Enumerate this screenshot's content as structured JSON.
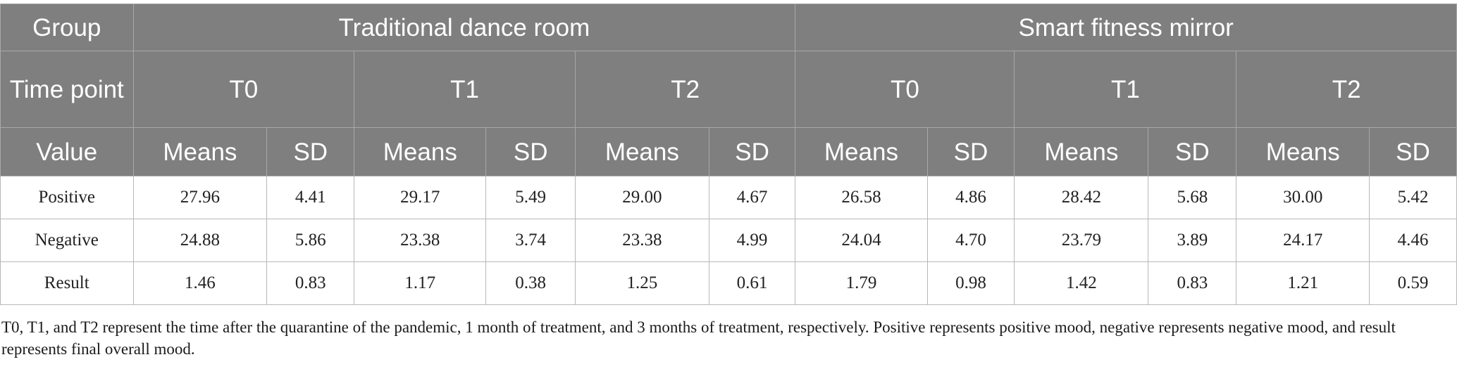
{
  "table": {
    "stub_group": "Group",
    "stub_time": "Time point",
    "stub_value": "Value",
    "groups": [
      {
        "name": "Traditional dance room",
        "timepoints": [
          "T0",
          "T1",
          "T2"
        ]
      },
      {
        "name": "Smart fitness mirror",
        "timepoints": [
          "T0",
          "T1",
          "T2"
        ]
      }
    ],
    "measure_headers": [
      "Means",
      "SD"
    ],
    "rows": [
      {
        "label": "Positive",
        "values": [
          "27.96",
          "4.41",
          "29.17",
          "5.49",
          "29.00",
          "4.67",
          "26.58",
          "4.86",
          "28.42",
          "5.68",
          "30.00",
          "5.42"
        ]
      },
      {
        "label": "Negative",
        "values": [
          "24.88",
          "5.86",
          "23.38",
          "3.74",
          "23.38",
          "4.99",
          "24.04",
          "4.70",
          "23.79",
          "3.89",
          "24.17",
          "4.46"
        ]
      },
      {
        "label": "Result",
        "values": [
          "1.46",
          "0.83",
          "1.17",
          "0.38",
          "1.25",
          "0.61",
          "1.79",
          "0.98",
          "1.42",
          "0.83",
          "1.21",
          "0.59"
        ]
      }
    ]
  },
  "footnote": "T0, T1, and T2 represent the time after the quarantine of the pandemic, 1 month of treatment, and 3 months of treatment, respectively. Positive represents positive mood, negative represents negative mood, and result represents final overall mood.",
  "colors": {
    "header_bg": "#7f7f7f",
    "header_text": "#ffffff",
    "grid_line": "#b8b8b8"
  }
}
